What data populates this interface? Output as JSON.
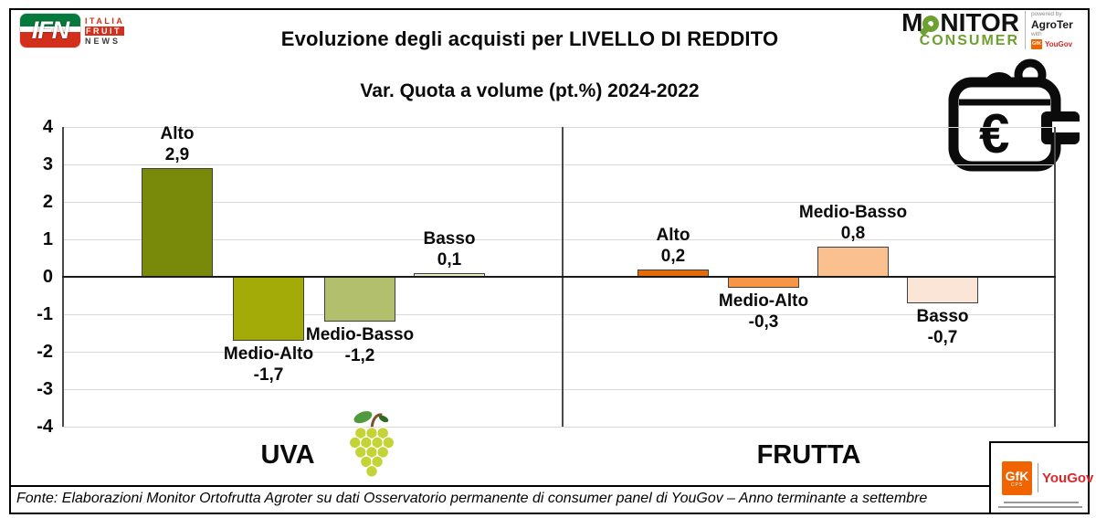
{
  "header": {
    "title": "Evoluzione degli acquisti per LIVELLO DI REDDITO",
    "subtitle": "Var. Quota a volume (pt.%) 2024-2022"
  },
  "logos": {
    "ifn": {
      "acronym": "IFN",
      "line1": "ITALIA",
      "line2": "FRUIT",
      "line3": "NEWS"
    },
    "monitor": {
      "m_prefix": "M",
      "m_suffix": "NITOR",
      "line2": "CONSUMER",
      "powered_by": "powered by",
      "agroter": "AgroTer",
      "with": "with",
      "gfk": "GfK",
      "yougov": "YouGov"
    },
    "gfk_box": {
      "gfk": "GfK",
      "cps": "CPS",
      "yougov": "YouGov"
    }
  },
  "icons": {
    "euro_symbol": "€"
  },
  "colors": {
    "monitor_green": "#6CA02F",
    "gfk_orange": "#F06400",
    "yougov_red": "#E0262B",
    "ifn_green": "#067A3C",
    "ifn_red": "#D2301C",
    "gridline": "#D9D9D9"
  },
  "chart_data": {
    "type": "bar",
    "title": "Evoluzione degli acquisti per LIVELLO DI REDDITO",
    "subtitle": "Var. Quota a volume (pt.%) 2024-2022",
    "ylim": [
      -4,
      4
    ],
    "yticks": [
      4,
      3,
      2,
      1,
      0,
      -1,
      -2,
      -3,
      -4
    ],
    "grid": true,
    "legend": "none",
    "group_divider": true,
    "groups": [
      {
        "name": "UVA",
        "categories": [
          "Alto",
          "Medio-Alto",
          "Medio-Basso",
          "Basso"
        ],
        "values": [
          2.9,
          -1.7,
          -1.2,
          0.1
        ],
        "value_labels": [
          "2,9",
          "-1,7",
          "-1,2",
          "0,1"
        ],
        "colors": [
          "#798A0A",
          "#A2AB07",
          "#B2C06E",
          "#EAEDC5"
        ]
      },
      {
        "name": "FRUTTA",
        "categories": [
          "Alto",
          "Medio-Alto",
          "Medio-Basso",
          "Basso"
        ],
        "values": [
          0.2,
          -0.3,
          0.8,
          -0.7
        ],
        "value_labels": [
          "0,2",
          "-0,3",
          "0,8",
          "-0,7"
        ],
        "colors": [
          "#E36C09",
          "#F79646",
          "#FAC090",
          "#FBE5D6"
        ]
      }
    ]
  },
  "footer": {
    "source": "Fonte: Elaborazioni Monitor Ortofrutta Agroter su dati Osservatorio permanente di consumer panel di YouGov – Anno terminante a settembre"
  }
}
